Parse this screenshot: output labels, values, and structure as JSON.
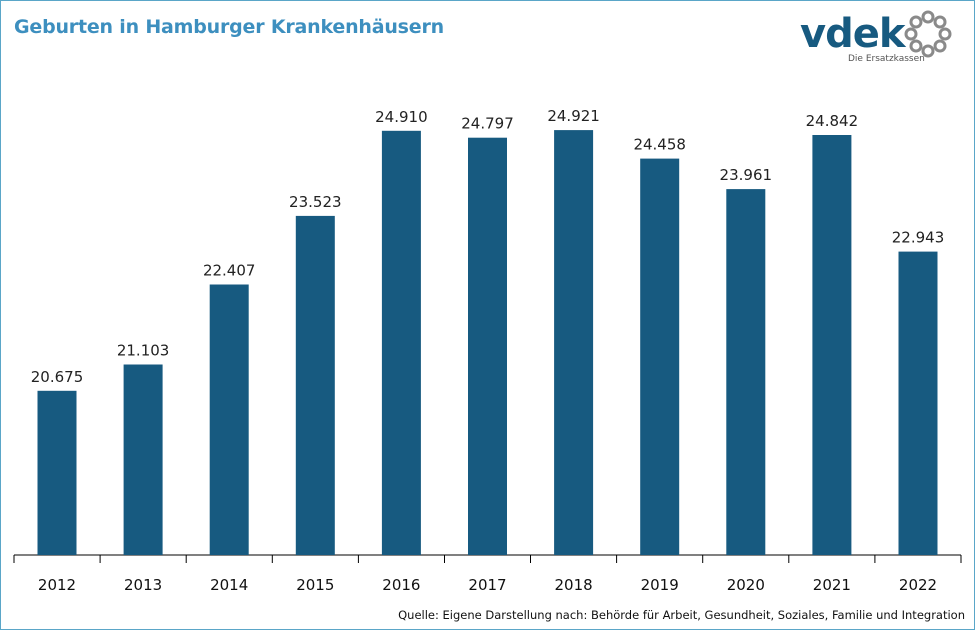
{
  "chart_data": {
    "type": "bar",
    "title": "Geburten in Hamburger Krankenhäusern",
    "categories": [
      "2012",
      "2013",
      "2014",
      "2015",
      "2016",
      "2017",
      "2018",
      "2019",
      "2020",
      "2021",
      "2022"
    ],
    "values": [
      20675,
      21103,
      22407,
      23523,
      24910,
      24797,
      24921,
      24458,
      23961,
      24842,
      22943
    ],
    "value_labels": [
      "20.675",
      "21.103",
      "22.407",
      "23.523",
      "24.910",
      "24.797",
      "24.921",
      "24.458",
      "23.961",
      "24.842",
      "22.943"
    ],
    "ylim": [
      18000,
      25200
    ],
    "grid": false,
    "bar_color": "#175a80",
    "source": "Quelle: Eigene Darstellung nach: Behörde für Arbeit, Gesundheit, Soziales, Familie und Integration"
  },
  "logo": {
    "wordmark": "vdek",
    "tagline": "Die Ersatzkassen",
    "color": "#175a80",
    "ring_color": "#8a8a8a"
  },
  "colors": {
    "title": "#3d8fbf",
    "border": "#5aa6c8"
  }
}
